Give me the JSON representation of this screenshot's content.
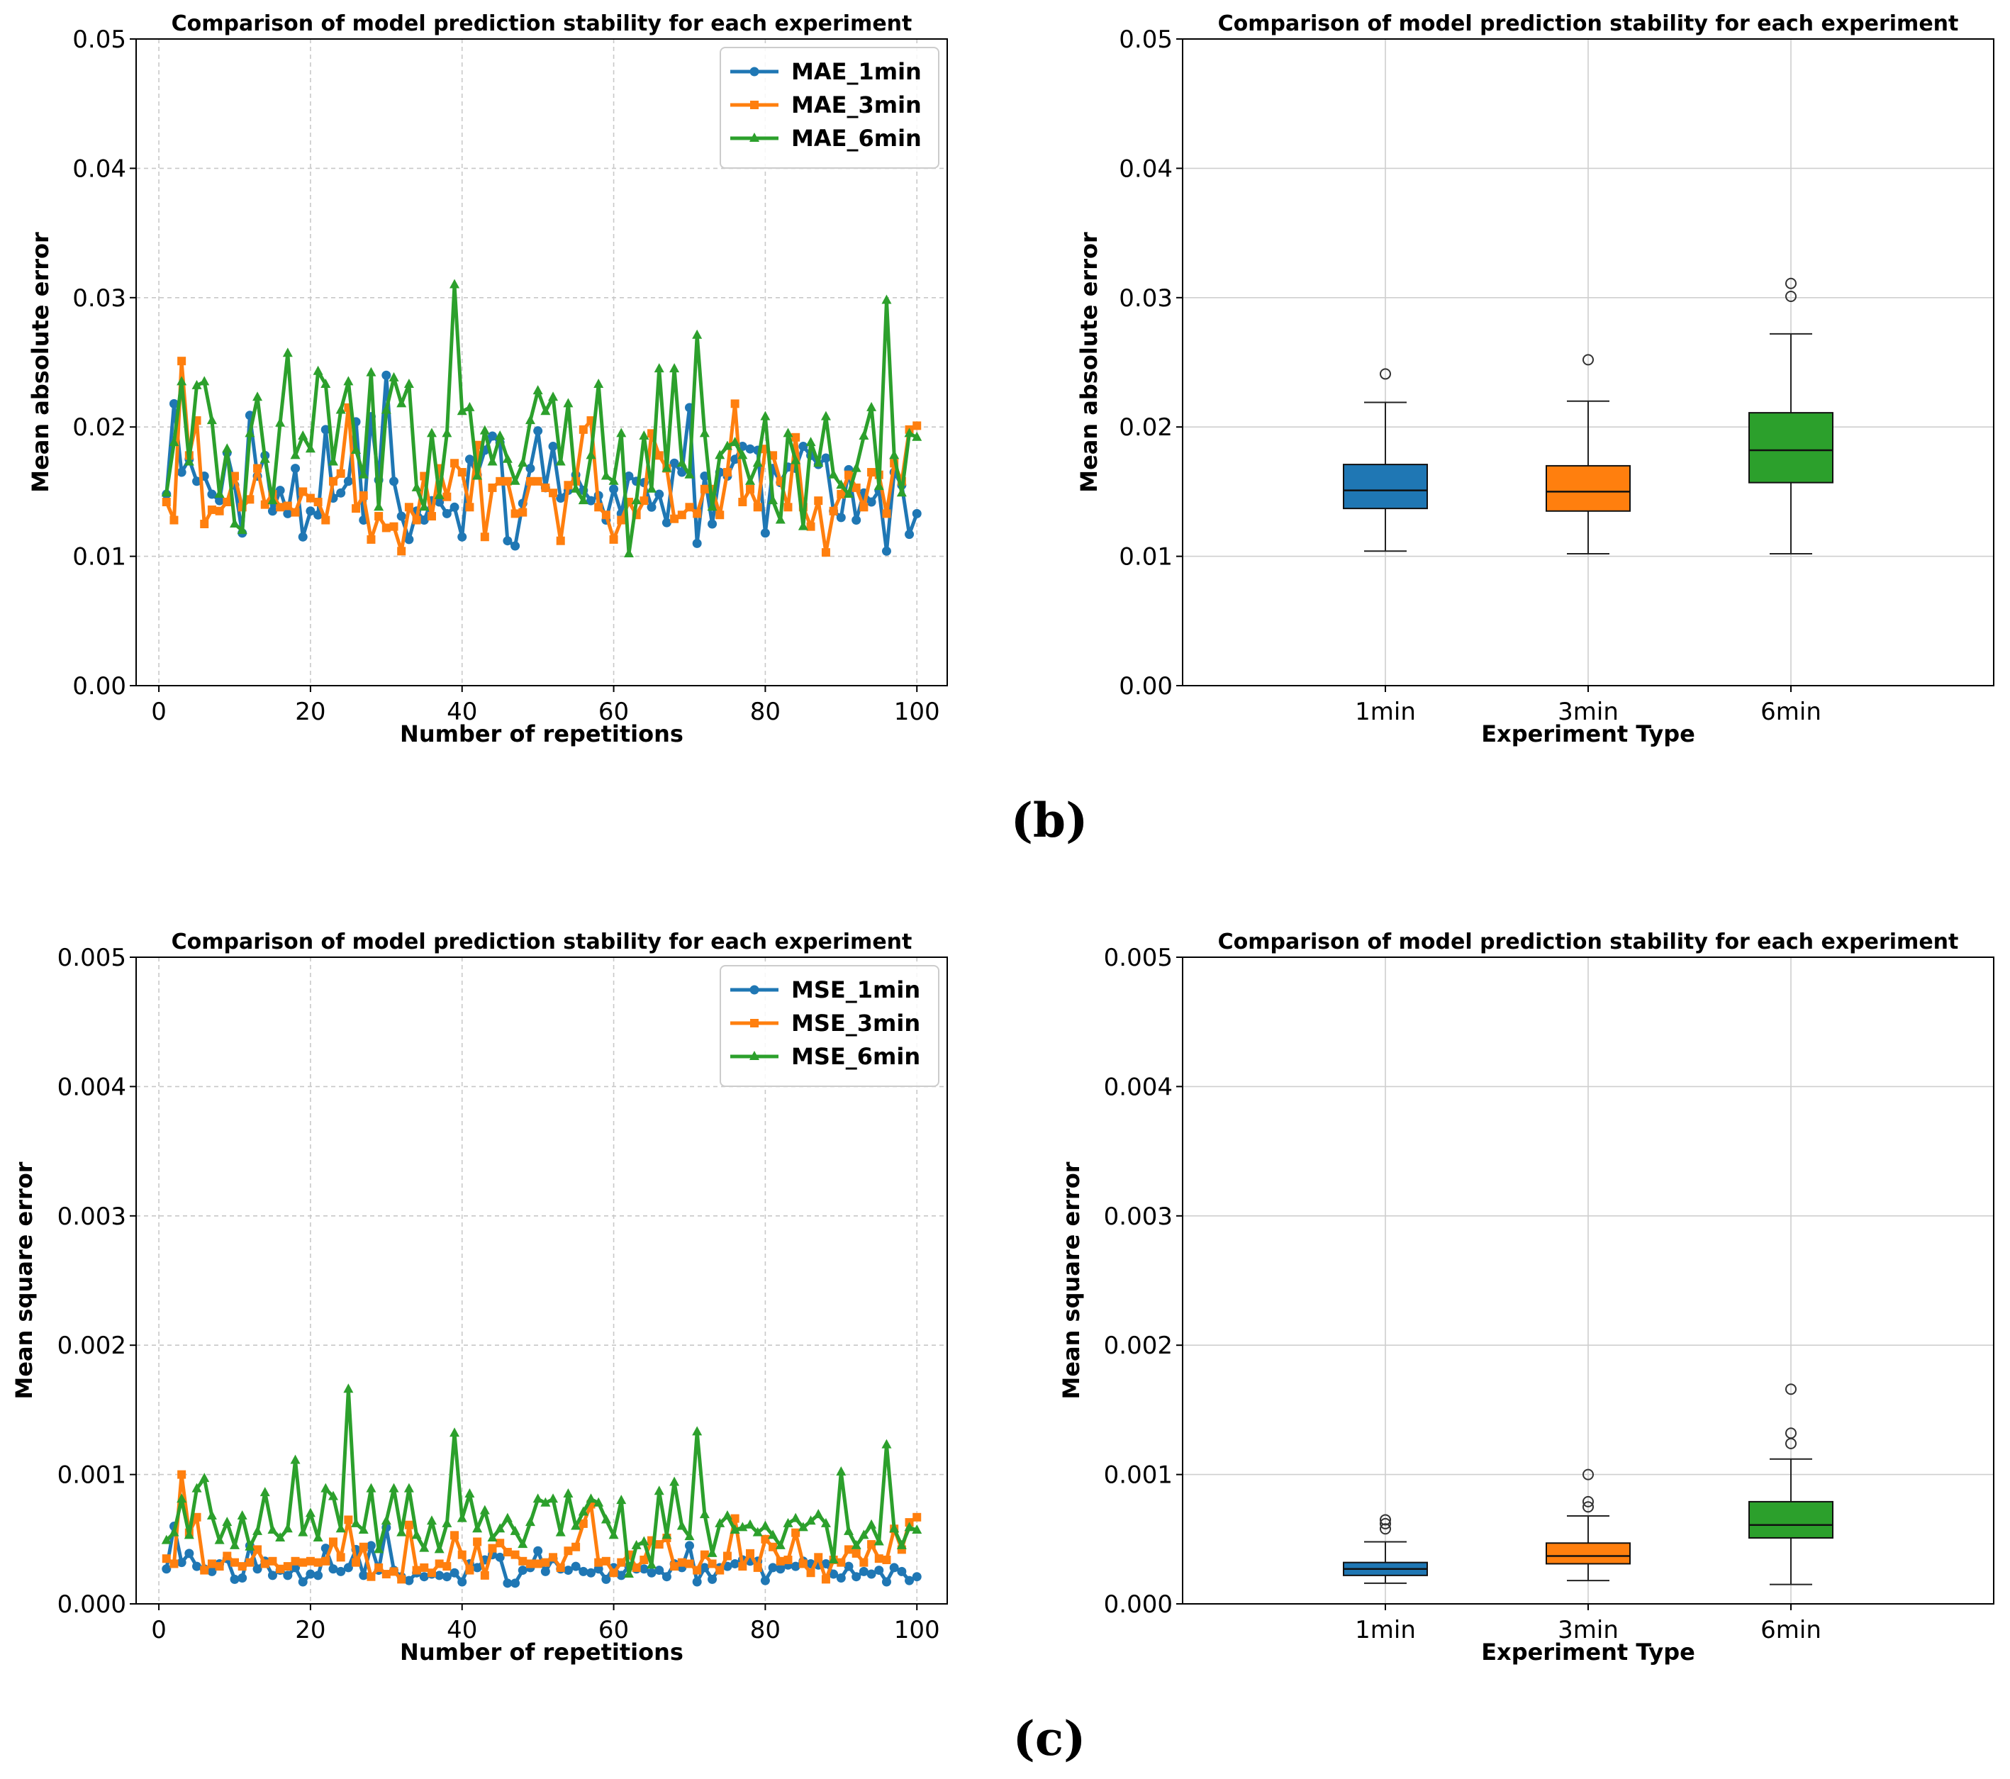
{
  "panel_labels": [
    "(b)",
    "(c)"
  ],
  "colors": {
    "c1": "#1f77b4",
    "c3": "#ff7f0e",
    "c6": "#2ca02c"
  },
  "chart_data": [
    {
      "id": "mae_line",
      "type": "line",
      "title": "Comparison of model prediction stability for each experiment",
      "xlabel": "Number of repetitions",
      "ylabel": "Mean absolute error",
      "xlim": [
        -3,
        104
      ],
      "ylim": [
        0,
        0.05
      ],
      "xticks": [
        0,
        20,
        40,
        60,
        80,
        100
      ],
      "yticks": [
        0.0,
        0.01,
        0.02,
        0.03,
        0.04,
        0.05
      ],
      "ytick_labels": [
        "0.00",
        "0.01",
        "0.02",
        "0.03",
        "0.04",
        "0.05"
      ],
      "legend_position": "top-right",
      "series": [
        {
          "name": "MAE_1min",
          "color": "#1f77b4",
          "marker": "circle",
          "values": [
            0.0148,
            0.0218,
            0.0165,
            0.0175,
            0.0158,
            0.0162,
            0.0148,
            0.0143,
            0.018,
            0.0155,
            0.0118,
            0.0209,
            0.0162,
            0.0178,
            0.0135,
            0.0151,
            0.0133,
            0.0168,
            0.0115,
            0.0135,
            0.0132,
            0.0198,
            0.0145,
            0.0149,
            0.0158,
            0.0204,
            0.0128,
            0.0208,
            0.0159,
            0.024,
            0.0158,
            0.0131,
            0.0113,
            0.0135,
            0.0128,
            0.0143,
            0.0142,
            0.0133,
            0.0138,
            0.0115,
            0.0175,
            0.0163,
            0.0182,
            0.0193,
            0.0188,
            0.0112,
            0.0108,
            0.0141,
            0.0168,
            0.0197,
            0.0153,
            0.0185,
            0.0145,
            0.0151,
            0.0163,
            0.0151,
            0.0143,
            0.0147,
            0.0128,
            0.0152,
            0.0133,
            0.0162,
            0.0158,
            0.0157,
            0.0138,
            0.0148,
            0.0126,
            0.0172,
            0.0165,
            0.0215,
            0.011,
            0.0162,
            0.0125,
            0.0165,
            0.0162,
            0.0175,
            0.0185,
            0.0183,
            0.0182,
            0.0118,
            0.0168,
            0.0157,
            0.0169,
            0.0168,
            0.0185,
            0.0178,
            0.0171,
            0.0176,
            0.0135,
            0.013,
            0.0167,
            0.0128,
            0.0149,
            0.0142,
            0.0151,
            0.0104,
            0.0165,
            0.0155,
            0.0117,
            0.0133
          ]
        },
        {
          "name": "MAE_3min",
          "color": "#ff7f0e",
          "marker": "square",
          "values": [
            0.0142,
            0.0128,
            0.0251,
            0.0178,
            0.0205,
            0.0125,
            0.0136,
            0.0135,
            0.0142,
            0.0162,
            0.0138,
            0.0144,
            0.0168,
            0.014,
            0.0148,
            0.0138,
            0.0139,
            0.0134,
            0.015,
            0.0145,
            0.0142,
            0.0128,
            0.0158,
            0.0164,
            0.0215,
            0.0137,
            0.0147,
            0.0113,
            0.0131,
            0.0122,
            0.0123,
            0.0104,
            0.0138,
            0.0128,
            0.0162,
            0.0131,
            0.0168,
            0.0146,
            0.0172,
            0.0165,
            0.0138,
            0.0186,
            0.0115,
            0.0153,
            0.0158,
            0.0158,
            0.0133,
            0.0134,
            0.0158,
            0.0158,
            0.0153,
            0.0149,
            0.0112,
            0.0155,
            0.0158,
            0.0198,
            0.0205,
            0.0138,
            0.0132,
            0.0113,
            0.0128,
            0.0142,
            0.0132,
            0.0143,
            0.0195,
            0.0178,
            0.0168,
            0.0129,
            0.0132,
            0.0138,
            0.0133,
            0.0152,
            0.0152,
            0.0132,
            0.0165,
            0.0218,
            0.0142,
            0.0152,
            0.0138,
            0.0183,
            0.0178,
            0.0158,
            0.0138,
            0.0192,
            0.0138,
            0.0123,
            0.0143,
            0.0103,
            0.0135,
            0.0148,
            0.0163,
            0.0153,
            0.0138,
            0.0165,
            0.0163,
            0.0133,
            0.0172,
            0.0158,
            0.0198,
            0.0201
          ]
        },
        {
          "name": "MAE_6min",
          "color": "#2ca02c",
          "marker": "triangle",
          "values": [
            0.0149,
            0.0188,
            0.0235,
            0.0173,
            0.0232,
            0.0235,
            0.0205,
            0.0148,
            0.0183,
            0.0125,
            0.012,
            0.0195,
            0.0223,
            0.0175,
            0.0143,
            0.0203,
            0.0257,
            0.0178,
            0.0193,
            0.0183,
            0.0243,
            0.0233,
            0.0173,
            0.0213,
            0.0235,
            0.0182,
            0.0163,
            0.0242,
            0.0138,
            0.0213,
            0.0238,
            0.0218,
            0.0233,
            0.0153,
            0.0138,
            0.0195,
            0.0147,
            0.0195,
            0.031,
            0.0212,
            0.0215,
            0.0162,
            0.0197,
            0.0173,
            0.0193,
            0.0175,
            0.0158,
            0.0172,
            0.0205,
            0.0228,
            0.0212,
            0.0223,
            0.0173,
            0.0218,
            0.0152,
            0.0143,
            0.0178,
            0.0233,
            0.0162,
            0.0158,
            0.0195,
            0.0102,
            0.0143,
            0.0193,
            0.0152,
            0.0245,
            0.0168,
            0.0245,
            0.0172,
            0.0163,
            0.0271,
            0.0195,
            0.0138,
            0.0178,
            0.0185,
            0.0188,
            0.0178,
            0.0158,
            0.0172,
            0.0208,
            0.0143,
            0.0128,
            0.0195,
            0.0174,
            0.0123,
            0.0188,
            0.0172,
            0.0208,
            0.0163,
            0.0155,
            0.0148,
            0.0168,
            0.0193,
            0.0215,
            0.0154,
            0.0298,
            0.0178,
            0.0149,
            0.0195,
            0.0192
          ]
        }
      ]
    },
    {
      "id": "mae_box",
      "type": "boxplot",
      "title": "Comparison of model prediction stability for each experiment",
      "xlabel": "Experiment Type",
      "ylabel": "Mean absolute error",
      "ylim": [
        0,
        0.05
      ],
      "yticks": [
        0.0,
        0.01,
        0.02,
        0.03,
        0.04,
        0.05
      ],
      "ytick_labels": [
        "0.00",
        "0.01",
        "0.02",
        "0.03",
        "0.04",
        "0.05"
      ],
      "categories": [
        "1min",
        "3min",
        "6min"
      ],
      "boxes": [
        {
          "category": "1min",
          "color": "#1f77b4",
          "whislo": 0.0104,
          "q1": 0.0137,
          "median": 0.0151,
          "q3": 0.0171,
          "whishi": 0.0219,
          "fliers": [
            0.0241
          ]
        },
        {
          "category": "3min",
          "color": "#ff7f0e",
          "whislo": 0.0102,
          "q1": 0.0135,
          "median": 0.015,
          "q3": 0.017,
          "whishi": 0.022,
          "fliers": [
            0.0252
          ]
        },
        {
          "category": "6min",
          "color": "#2ca02c",
          "whislo": 0.0102,
          "q1": 0.0157,
          "median": 0.0182,
          "q3": 0.0211,
          "whishi": 0.0272,
          "fliers": [
            0.0301,
            0.0311
          ]
        }
      ]
    },
    {
      "id": "mse_line",
      "type": "line",
      "title": "Comparison of model prediction stability for each experiment",
      "xlabel": "Number of repetitions",
      "ylabel": "Mean square error",
      "xlim": [
        -3,
        104
      ],
      "ylim": [
        0,
        0.005
      ],
      "xticks": [
        0,
        20,
        40,
        60,
        80,
        100
      ],
      "yticks": [
        0.0,
        0.001,
        0.002,
        0.003,
        0.004,
        0.005
      ],
      "ytick_labels": [
        "0.000",
        "0.001",
        "0.002",
        "0.003",
        "0.004",
        "0.005"
      ],
      "legend_position": "top-right",
      "series": [
        {
          "name": "MSE_1min",
          "color": "#1f77b4",
          "marker": "circle",
          "values": [
            0.00027,
            0.0006,
            0.00032,
            0.00039,
            0.00029,
            0.00027,
            0.00025,
            0.00031,
            0.00035,
            0.00019,
            0.0002,
            0.00045,
            0.00027,
            0.00033,
            0.00022,
            0.00026,
            0.00022,
            0.00028,
            0.00017,
            0.00023,
            0.00022,
            0.00043,
            0.00027,
            0.00025,
            0.00028,
            0.00042,
            0.00022,
            0.00045,
            0.00026,
            0.00059,
            0.00026,
            0.00021,
            0.00018,
            0.00024,
            0.00021,
            0.00023,
            0.00022,
            0.00021,
            0.00024,
            0.00017,
            0.00031,
            0.00028,
            0.00034,
            0.00038,
            0.00036,
            0.00016,
            0.00016,
            0.00026,
            0.00028,
            0.00041,
            0.00025,
            0.00035,
            0.00027,
            0.00026,
            0.00029,
            0.00025,
            0.00024,
            0.00027,
            0.00019,
            0.00028,
            0.00022,
            0.00029,
            0.00027,
            0.00027,
            0.00024,
            0.00026,
            0.00021,
            0.00031,
            0.00028,
            0.00045,
            0.00017,
            0.00028,
            0.00019,
            0.00028,
            0.00029,
            0.00031,
            0.00034,
            0.00033,
            0.00033,
            0.00018,
            0.00028,
            0.00027,
            0.0003,
            0.00029,
            0.00033,
            0.00031,
            0.0003,
            0.00031,
            0.00023,
            0.0002,
            0.00029,
            0.00021,
            0.00025,
            0.00023,
            0.00026,
            0.00017,
            0.00028,
            0.00025,
            0.00018,
            0.00021
          ]
        },
        {
          "name": "MSE_3min",
          "color": "#ff7f0e",
          "marker": "square",
          "values": [
            0.00035,
            0.00031,
            0.001,
            0.00055,
            0.00067,
            0.00026,
            0.00031,
            0.00029,
            0.00037,
            0.00032,
            0.00029,
            0.00032,
            0.00042,
            0.00031,
            0.00033,
            0.00027,
            0.00029,
            0.00033,
            0.00032,
            0.00033,
            0.00032,
            0.00033,
            0.00048,
            0.00036,
            0.00065,
            0.00032,
            0.00044,
            0.00021,
            0.00028,
            0.00023,
            0.00025,
            0.00019,
            0.00061,
            0.00026,
            0.00028,
            0.00024,
            0.00031,
            0.00029,
            0.00053,
            0.00038,
            0.00026,
            0.00048,
            0.00022,
            0.00043,
            0.00047,
            0.0004,
            0.00038,
            0.00033,
            0.00031,
            0.00031,
            0.00032,
            0.00036,
            0.00028,
            0.00041,
            0.00044,
            0.00062,
            0.00077,
            0.00032,
            0.00033,
            0.00024,
            0.00032,
            0.00038,
            0.00028,
            0.00034,
            0.00049,
            0.00046,
            0.00051,
            0.00029,
            0.00032,
            0.00031,
            0.00026,
            0.00038,
            0.00031,
            0.00026,
            0.00037,
            0.00066,
            0.00029,
            0.00039,
            0.00028,
            0.0005,
            0.00044,
            0.00033,
            0.00034,
            0.00055,
            0.00031,
            0.00024,
            0.00036,
            0.00019,
            0.00034,
            0.00032,
            0.00042,
            0.00039,
            0.00032,
            0.00046,
            0.00035,
            0.00034,
            0.00058,
            0.00042,
            0.00063,
            0.00067
          ]
        },
        {
          "name": "MSE_6min",
          "color": "#2ca02c",
          "marker": "triangle",
          "values": [
            0.00049,
            0.00055,
            0.00081,
            0.00053,
            0.00089,
            0.00097,
            0.00068,
            0.00049,
            0.00063,
            0.00045,
            0.00068,
            0.00044,
            0.00056,
            0.00086,
            0.00057,
            0.00051,
            0.00058,
            0.00111,
            0.00055,
            0.0007,
            0.00051,
            0.00089,
            0.00083,
            0.00058,
            0.00166,
            0.00062,
            0.00057,
            0.00089,
            0.00042,
            0.00064,
            0.00089,
            0.00055,
            0.00089,
            0.00053,
            0.00043,
            0.00064,
            0.00042,
            0.00062,
            0.00132,
            0.00066,
            0.00085,
            0.00058,
            0.00072,
            0.00051,
            0.00058,
            0.00066,
            0.00056,
            0.00046,
            0.00063,
            0.00081,
            0.00078,
            0.00081,
            0.00055,
            0.00085,
            0.0006,
            0.00071,
            0.00081,
            0.00078,
            0.00065,
            0.00053,
            0.0008,
            0.00023,
            0.00045,
            0.00048,
            0.0003,
            0.00087,
            0.00053,
            0.00094,
            0.0006,
            0.00052,
            0.00133,
            0.00069,
            0.00039,
            0.00062,
            0.00068,
            0.00057,
            0.00059,
            0.00061,
            0.00055,
            0.0006,
            0.00053,
            0.00045,
            0.00062,
            0.00066,
            0.00059,
            0.00064,
            0.00069,
            0.00062,
            0.00034,
            0.00102,
            0.00056,
            0.00045,
            0.00053,
            0.00061,
            0.00048,
            0.00123,
            0.00058,
            0.00045,
            0.00059,
            0.00057
          ]
        }
      ]
    },
    {
      "id": "mse_box",
      "type": "boxplot",
      "title": "Comparison of model prediction stability for each experiment",
      "xlabel": "Experiment Type",
      "ylabel": "Mean square error",
      "ylim": [
        0,
        0.005
      ],
      "yticks": [
        0.0,
        0.001,
        0.002,
        0.003,
        0.004,
        0.005
      ],
      "ytick_labels": [
        "0.000",
        "0.001",
        "0.002",
        "0.003",
        "0.004",
        "0.005"
      ],
      "categories": [
        "1min",
        "3min",
        "6min"
      ],
      "boxes": [
        {
          "category": "1min",
          "color": "#1f77b4",
          "whislo": 0.00016,
          "q1": 0.00022,
          "median": 0.00027,
          "q3": 0.00032,
          "whishi": 0.00048,
          "fliers": [
            0.00058,
            0.00062,
            0.00065
          ]
        },
        {
          "category": "3min",
          "color": "#ff7f0e",
          "whislo": 0.00018,
          "q1": 0.00031,
          "median": 0.00037,
          "q3": 0.00047,
          "whishi": 0.00068,
          "fliers": [
            0.00075,
            0.00079,
            0.001
          ]
        },
        {
          "category": "6min",
          "color": "#2ca02c",
          "whislo": 0.00015,
          "q1": 0.00051,
          "median": 0.00061,
          "q3": 0.00079,
          "whishi": 0.00112,
          "fliers": [
            0.00124,
            0.00132,
            0.00166
          ]
        }
      ]
    }
  ]
}
